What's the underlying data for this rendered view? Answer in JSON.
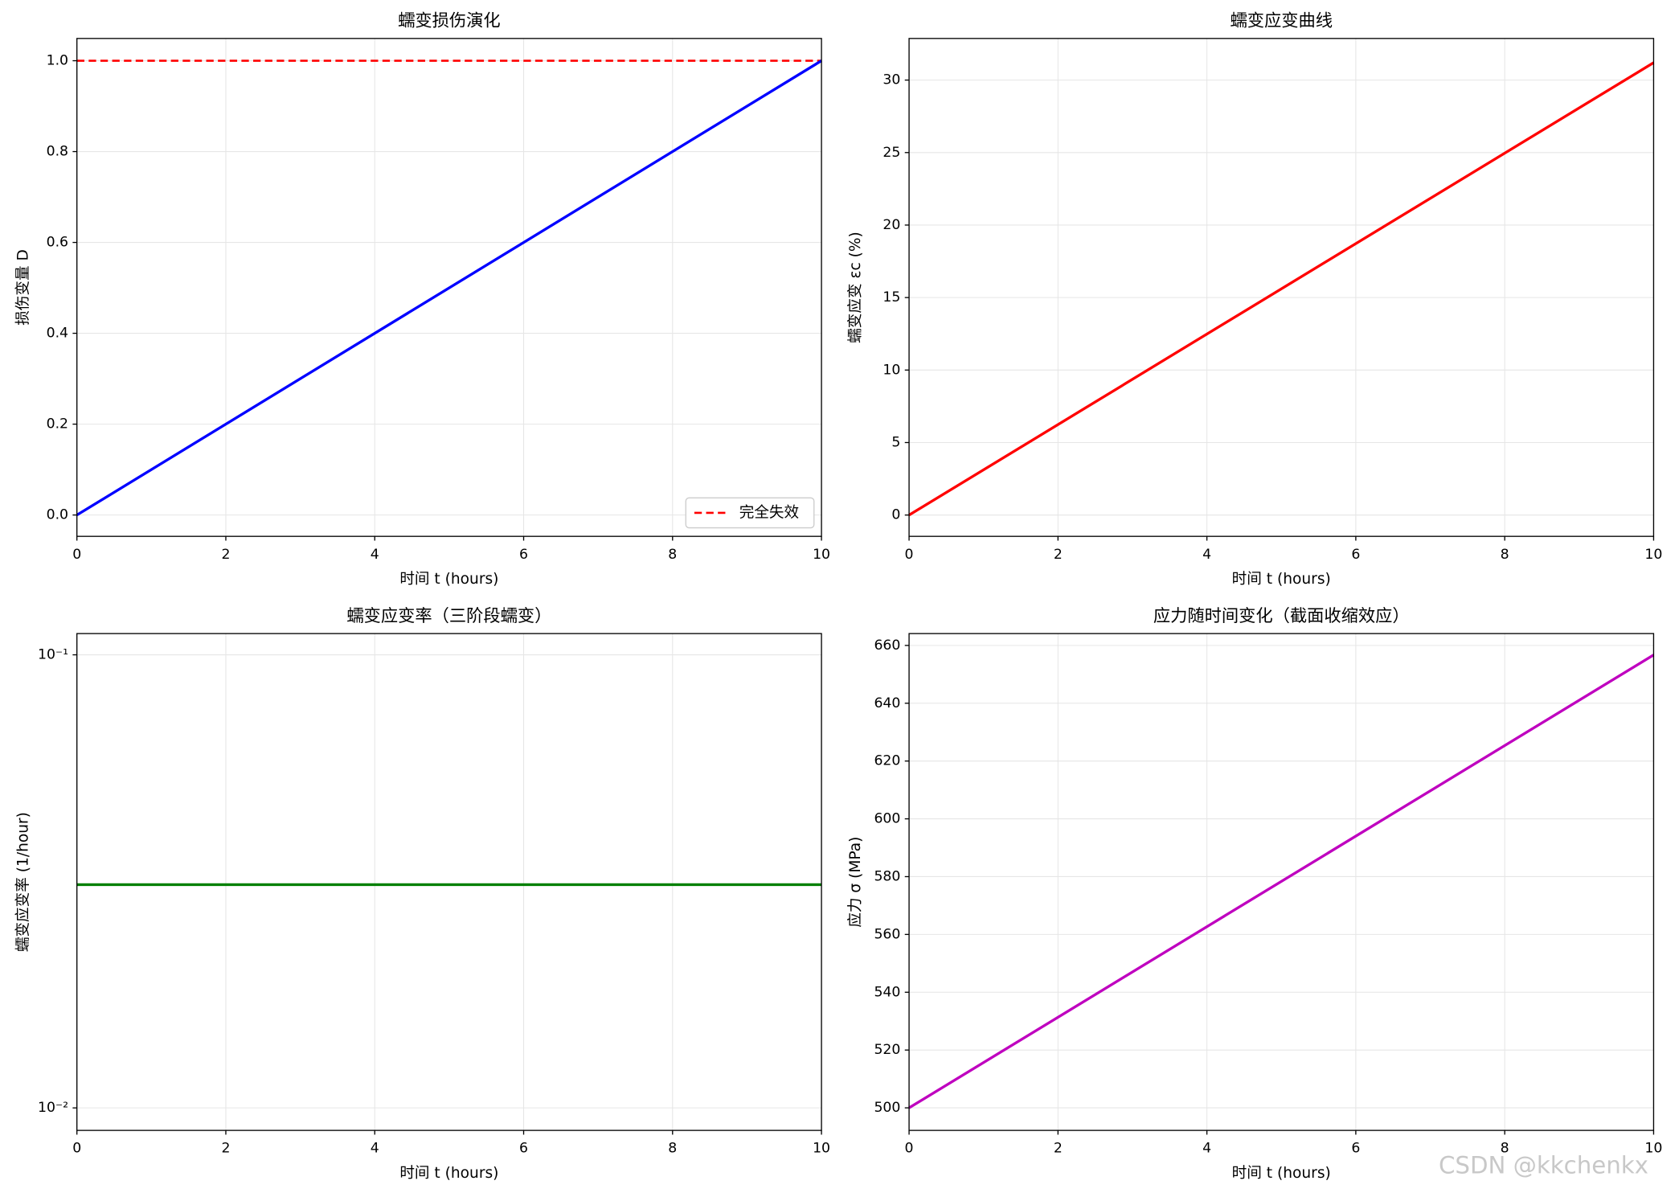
{
  "chart_data": [
    {
      "type": "line",
      "title": "蠕变损伤演化",
      "xlabel": "时间 t (hours)",
      "ylabel": "损伤变量 D",
      "x": [
        0,
        10
      ],
      "series": [
        {
          "color": "#0000ff",
          "values": [
            0,
            1.0
          ]
        }
      ],
      "hlines": [
        {
          "name": "完全失效",
          "value": 1.0,
          "color": "#ff0000",
          "style": "dashed"
        }
      ],
      "legend": "lower right",
      "xlim": [
        0,
        10
      ],
      "xticks": [
        0,
        2,
        4,
        6,
        8,
        10
      ],
      "ylim": [
        -0.047,
        1.049
      ],
      "yticks": [
        {
          "value": 0,
          "label": "0.0"
        },
        0.2,
        0.4,
        0.6,
        0.8,
        {
          "value": 1,
          "label": "1.0"
        }
      ],
      "grid": true
    },
    {
      "type": "line",
      "title": "蠕变应变曲线",
      "xlabel": "时间 t (hours)",
      "ylabel": "蠕变应变 εc (%)",
      "x": [
        0,
        10
      ],
      "series": [
        {
          "color": "#ff0000",
          "values": [
            0,
            31.2
          ]
        }
      ],
      "xlim": [
        0,
        10
      ],
      "xticks": [
        0,
        2,
        4,
        6,
        8,
        10
      ],
      "ylim": [
        -1.47,
        32.87
      ],
      "yticks": [
        0,
        5,
        10,
        15,
        20,
        25,
        30
      ],
      "grid": true
    },
    {
      "type": "line",
      "title": "蠕变应变率（三阶段蠕变）",
      "xlabel": "时间 t (hours)",
      "ylabel": "蠕变应变率 (1/hour)",
      "x": [
        0,
        10
      ],
      "series": [
        {
          "color": "#008000",
          "values": [
            0.0311,
            0.0311
          ]
        }
      ],
      "xlim": [
        0,
        10
      ],
      "xticks": [
        0,
        2,
        4,
        6,
        8,
        10
      ],
      "log_y": true,
      "ylim": [
        0.00892,
        0.1114
      ],
      "yticks": [
        {
          "value": 0.01,
          "label": "10⁻²"
        },
        {
          "value": 0.1,
          "label": "10⁻¹"
        }
      ],
      "grid": true
    },
    {
      "type": "line",
      "title": "应力随时间变化（截面收缩效应）",
      "xlabel": "时间 t (hours)",
      "ylabel": "应力 σ (MPa)",
      "x": [
        0,
        10
      ],
      "series": [
        {
          "color": "#bf00bf",
          "values": [
            500,
            656.7
          ]
        }
      ],
      "xlim": [
        0,
        10
      ],
      "xticks": [
        0,
        2,
        4,
        6,
        8,
        10
      ],
      "ylim": [
        492.2,
        664.1
      ],
      "yticks": [
        500,
        520,
        540,
        560,
        580,
        600,
        620,
        640,
        660
      ],
      "grid": true
    }
  ],
  "watermark": "CSDN @kkchenkx"
}
